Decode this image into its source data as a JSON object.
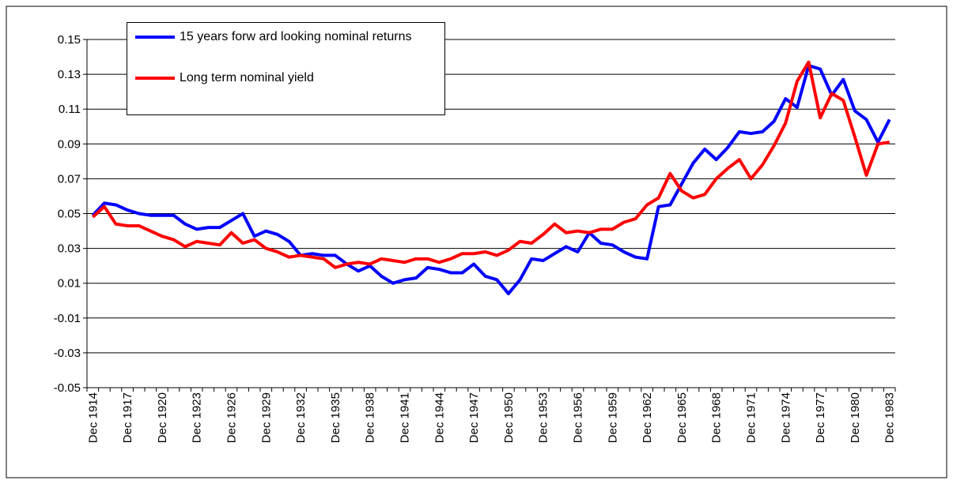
{
  "chart_data": {
    "type": "line",
    "categories": [
      "Dec 1914",
      null,
      null,
      "Dec 1917",
      null,
      null,
      "Dec 1920",
      null,
      null,
      "Dec 1923",
      null,
      null,
      "Dec 1926",
      null,
      null,
      "Dec 1929",
      null,
      null,
      "Dec 1932",
      null,
      null,
      "Dec 1935",
      null,
      null,
      "Dec 1938",
      null,
      null,
      "Dec 1941",
      null,
      null,
      "Dec 1944",
      null,
      null,
      "Dec 1947",
      null,
      null,
      "Dec 1950",
      null,
      null,
      "Dec 1953",
      null,
      null,
      "Dec 1956",
      null,
      null,
      "Dec 1959",
      null,
      null,
      "Dec 1962",
      null,
      null,
      "Dec 1965",
      null,
      null,
      "Dec 1968",
      null,
      null,
      "Dec 1971",
      null,
      null,
      "Dec 1974",
      null,
      null,
      "Dec 1977",
      null,
      null,
      "Dec 1980",
      null,
      null,
      "Dec 1983"
    ],
    "series": [
      {
        "name": "15 years forw ard looking nominal returns",
        "color": "#0000ff",
        "values": [
          0.049,
          0.056,
          0.055,
          0.052,
          0.05,
          0.049,
          0.049,
          0.049,
          0.044,
          0.041,
          0.042,
          0.042,
          0.046,
          0.05,
          0.037,
          0.04,
          0.038,
          0.034,
          0.026,
          0.027,
          0.026,
          0.026,
          0.021,
          0.017,
          0.02,
          0.014,
          0.01,
          0.012,
          0.013,
          0.019,
          0.018,
          0.016,
          0.016,
          0.021,
          0.014,
          0.012,
          0.004,
          0.012,
          0.024,
          0.023,
          0.027,
          0.031,
          0.028,
          0.039,
          0.033,
          0.032,
          0.028,
          0.025,
          0.024,
          0.054,
          0.055,
          0.067,
          0.079,
          0.087,
          0.081,
          0.088,
          0.097,
          0.096,
          0.097,
          0.103,
          0.116,
          0.111,
          0.135,
          0.133,
          0.118,
          0.127,
          0.109,
          0.104,
          0.091,
          0.104
        ]
      },
      {
        "name": "Long term nominal yield",
        "color": "#ff0000",
        "values": [
          0.048,
          0.054,
          0.044,
          0.043,
          0.043,
          0.04,
          0.037,
          0.035,
          0.031,
          0.034,
          0.033,
          0.032,
          0.039,
          0.033,
          0.035,
          0.03,
          0.028,
          0.025,
          0.026,
          0.025,
          0.024,
          0.019,
          0.021,
          0.022,
          0.021,
          0.024,
          0.023,
          0.022,
          0.024,
          0.024,
          0.022,
          0.024,
          0.027,
          0.027,
          0.028,
          0.026,
          0.029,
          0.034,
          0.033,
          0.038,
          0.044,
          0.039,
          0.04,
          0.039,
          0.041,
          0.041,
          0.045,
          0.047,
          0.055,
          0.059,
          0.073,
          0.063,
          0.059,
          0.061,
          0.07,
          0.076,
          0.081,
          0.07,
          0.078,
          0.089,
          0.102,
          0.126,
          0.137,
          0.105,
          0.119,
          0.115,
          0.094,
          0.072,
          0.09,
          0.091
        ]
      }
    ],
    "ylim": [
      -0.05,
      0.15
    ],
    "yticks": [
      -0.05,
      -0.03,
      -0.01,
      0.01,
      0.03,
      0.05,
      0.07,
      0.09,
      0.11,
      0.13,
      0.15
    ],
    "grid": true
  }
}
